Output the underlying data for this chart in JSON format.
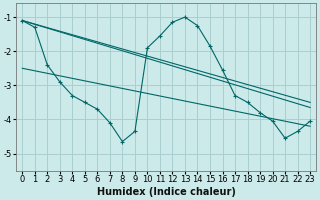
{
  "xlabel": "Humidex (Indice chaleur)",
  "ylabel": "",
  "xlim": [
    -0.5,
    23.5
  ],
  "ylim": [
    -5.5,
    -0.6
  ],
  "yticks": [
    -5,
    -4,
    -3,
    -2,
    -1
  ],
  "xticks": [
    0,
    1,
    2,
    3,
    4,
    5,
    6,
    7,
    8,
    9,
    10,
    11,
    12,
    13,
    14,
    15,
    16,
    17,
    18,
    19,
    20,
    21,
    22,
    23
  ],
  "background_color": "#cceaea",
  "grid_color": "#aacece",
  "line_color": "#006666",
  "curve_x": [
    0,
    1,
    2,
    3,
    4,
    5,
    6,
    7,
    8,
    9,
    10,
    11,
    12,
    13,
    14,
    15,
    16,
    17,
    18,
    19,
    20,
    21,
    22,
    23
  ],
  "curve_y": [
    -1.1,
    -1.3,
    -2.4,
    -2.9,
    -3.3,
    -3.5,
    -3.7,
    -4.1,
    -4.65,
    -4.35,
    -1.9,
    -1.55,
    -1.15,
    -1.0,
    -1.25,
    -1.85,
    -2.55,
    -3.3,
    -3.5,
    -3.8,
    -4.05,
    -4.55,
    -4.35,
    -4.05
  ],
  "line1_x": [
    0,
    23
  ],
  "line1_y": [
    -1.1,
    -3.5
  ],
  "line2_x": [
    0,
    23
  ],
  "line2_y": [
    -1.1,
    -3.65
  ],
  "line3_x": [
    0,
    23
  ],
  "line3_y": [
    -2.5,
    -4.2
  ],
  "fontsize_label": 7,
  "fontsize_tick": 6,
  "marker": "+"
}
